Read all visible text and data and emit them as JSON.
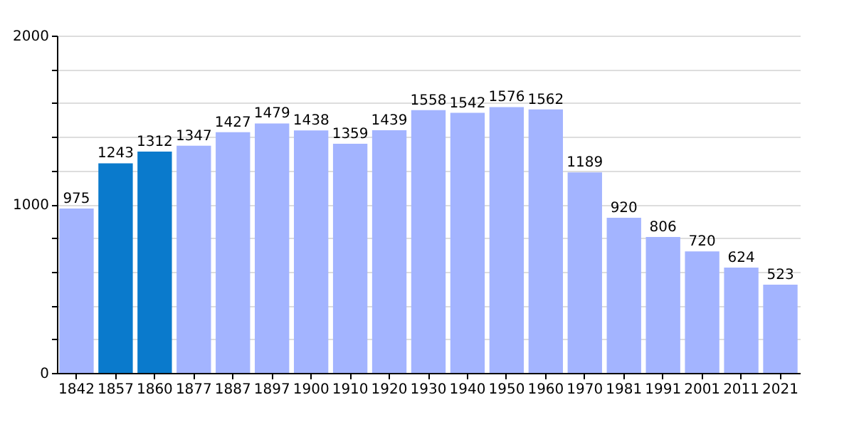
{
  "chart_data": {
    "type": "bar",
    "categories": [
      "1842",
      "1857",
      "1860",
      "1877",
      "1887",
      "1897",
      "1900",
      "1910",
      "1920",
      "1930",
      "1940",
      "1950",
      "1960",
      "1970",
      "1981",
      "1991",
      "2001",
      "2011",
      "2021"
    ],
    "values": [
      975,
      1243,
      1312,
      1347,
      1427,
      1479,
      1438,
      1359,
      1439,
      1558,
      1542,
      1576,
      1562,
      1189,
      920,
      806,
      720,
      624,
      523
    ],
    "colors": [
      "#a3b4ff",
      "#0a7acc",
      "#0a7acc",
      "#a3b4ff",
      "#a3b4ff",
      "#a3b4ff",
      "#a3b4ff",
      "#a3b4ff",
      "#a3b4ff",
      "#a3b4ff",
      "#a3b4ff",
      "#a3b4ff",
      "#a3b4ff",
      "#a3b4ff",
      "#a3b4ff",
      "#a3b4ff",
      "#a3b4ff",
      "#a3b4ff",
      "#a3b4ff"
    ],
    "ylim": [
      0,
      2000
    ],
    "yticks": [
      0,
      {
        "value": 200,
        "label": null
      },
      {
        "value": 400,
        "label": null
      },
      {
        "value": 600,
        "label": null
      },
      {
        "value": 800,
        "label": null
      },
      1000,
      {
        "value": 1200,
        "label": null
      },
      {
        "value": 1400,
        "label": null
      },
      {
        "value": 1600,
        "label": null
      },
      {
        "value": 1800,
        "label": null
      },
      2000
    ],
    "grid": "y",
    "data_labels": true
  }
}
